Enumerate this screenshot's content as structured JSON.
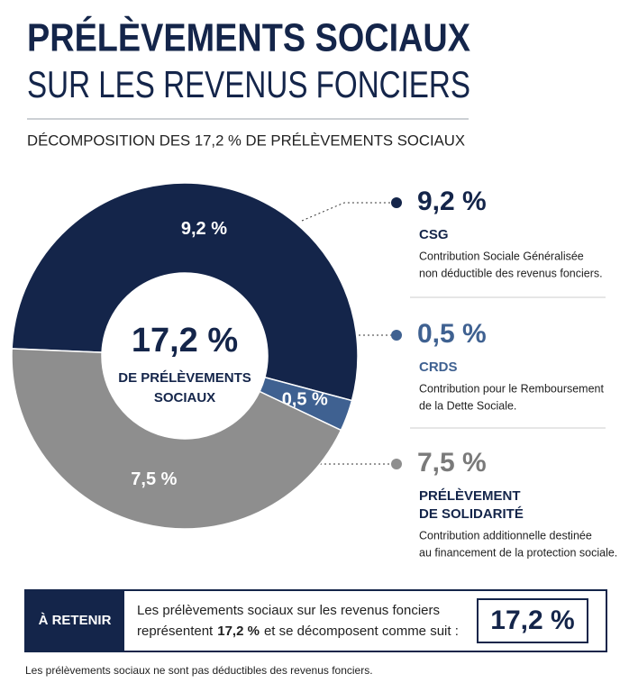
{
  "header": {
    "title": "PRÉLÈVEMENTS SOCIAUX",
    "title_line2": "SUR LES REVENUS FONCIERS",
    "subtitle": "DÉCOMPOSITION DES 17,2 % DE PRÉLÈVEMENTS SOCIAUX"
  },
  "chart_data": {
    "type": "pie",
    "donut": true,
    "categories": [
      "CSG",
      "CRDS",
      "PRÉLÈVEMENT DE SOLIDARITÉ"
    ],
    "values": [
      9.2,
      0.5,
      7.5
    ],
    "value_labels": [
      "9,2 %",
      "0,5 %",
      "7,5 %"
    ],
    "colors": [
      "#14254a",
      "#3f6191",
      "#8e8e8e"
    ],
    "center_value": "17,2 %",
    "center_text": [
      "DE PRÉLÈVEMENTS",
      "SOCIAUX"
    ],
    "descriptions": [
      [
        "Contribution Sociale Généralisée",
        "non déductible des revenus fonciers."
      ],
      [
        "Contribution pour le Remboursement",
        "de la Dette Sociale."
      ],
      [
        "Contribution additionnelle destinée",
        "au financement de la protection sociale."
      ]
    ]
  },
  "summary": {
    "label": "À RETENIR",
    "line1": "Les prélèvements sociaux sur les revenus fonciers",
    "line2_start": "représentent",
    "line2_bold": "17,2 %",
    "line2_end": "et se décomposent comme suit :",
    "total": "17,2 %"
  },
  "footnote": "Les prélèvements sociaux ne sont pas déductibles des revenus fonciers."
}
